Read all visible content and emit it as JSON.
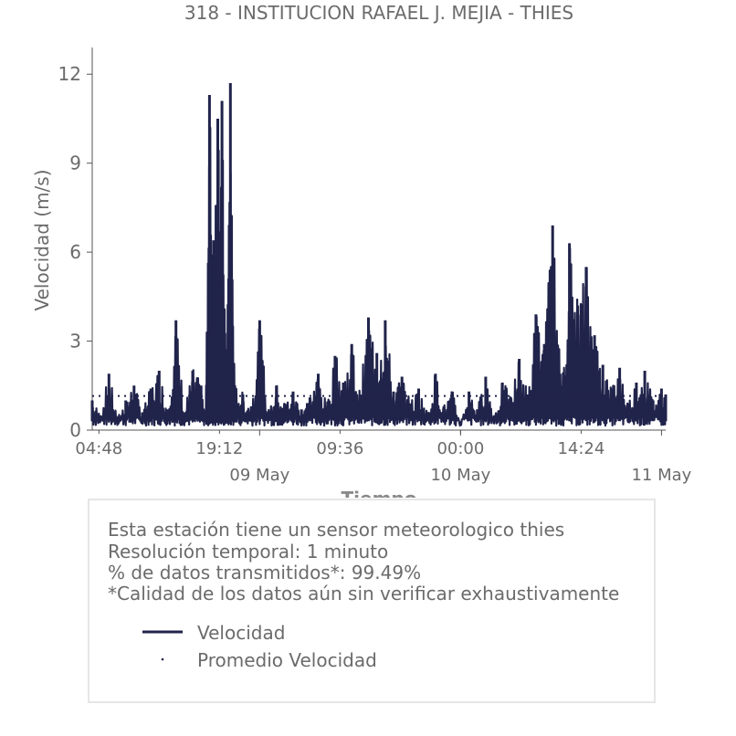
{
  "chart_data": {
    "type": "line",
    "title": "318 - INSTITUCION RAFAEL J. MEJIA - THIES",
    "xlabel": "Tiempo",
    "ylabel": "Velocidad (m/s)",
    "ylim": [
      0,
      12.9
    ],
    "yticks": [
      0,
      3,
      6,
      9,
      12
    ],
    "x_start": "2024-05-08 04:00",
    "x_end": "2024-05-11 00:30",
    "xticks_minor": [
      {
        "x": "2024-05-08 04:48",
        "label": "04:48"
      },
      {
        "x": "2024-05-08 19:12",
        "label": "19:12"
      },
      {
        "x": "2024-05-09 09:36",
        "label": "09:36"
      },
      {
        "x": "2024-05-10 00:00",
        "label": "00:00"
      },
      {
        "x": "2024-05-10 14:24",
        "label": "14:24"
      }
    ],
    "xticks_major": [
      {
        "x": "2024-05-09 00:00",
        "label": "09 May"
      },
      {
        "x": "2024-05-10 00:00",
        "label": "10 May"
      },
      {
        "x": "2024-05-11 00:00",
        "label": "11 May"
      }
    ],
    "series": [
      {
        "name": "Velocidad",
        "color": "#20234a",
        "style": "solid",
        "x": [
          "2024-05-08 04:00",
          "2024-05-08 05:00",
          "2024-05-08 06:00",
          "2024-05-08 07:00",
          "2024-05-08 08:00",
          "2024-05-08 09:00",
          "2024-05-08 10:00",
          "2024-05-08 11:00",
          "2024-05-08 12:00",
          "2024-05-08 13:00",
          "2024-05-08 14:00",
          "2024-05-08 15:00",
          "2024-05-08 16:00",
          "2024-05-08 17:00",
          "2024-05-08 17:30",
          "2024-05-08 18:00",
          "2024-05-08 18:30",
          "2024-05-08 19:00",
          "2024-05-08 19:30",
          "2024-05-08 20:00",
          "2024-05-08 20:30",
          "2024-05-08 21:00",
          "2024-05-08 22:00",
          "2024-05-08 23:00",
          "2024-05-09 00:00",
          "2024-05-09 01:00",
          "2024-05-09 02:00",
          "2024-05-09 03:00",
          "2024-05-09 04:00",
          "2024-05-09 05:00",
          "2024-05-09 06:00",
          "2024-05-09 07:00",
          "2024-05-09 08:00",
          "2024-05-09 09:00",
          "2024-05-09 10:00",
          "2024-05-09 11:00",
          "2024-05-09 12:00",
          "2024-05-09 13:00",
          "2024-05-09 14:00",
          "2024-05-09 15:00",
          "2024-05-09 16:00",
          "2024-05-09 17:00",
          "2024-05-09 18:00",
          "2024-05-09 19:00",
          "2024-05-09 20:00",
          "2024-05-09 21:00",
          "2024-05-09 22:00",
          "2024-05-09 23:00",
          "2024-05-10 00:00",
          "2024-05-10 01:00",
          "2024-05-10 02:00",
          "2024-05-10 03:00",
          "2024-05-10 04:00",
          "2024-05-10 05:00",
          "2024-05-10 06:00",
          "2024-05-10 07:00",
          "2024-05-10 08:00",
          "2024-05-10 09:00",
          "2024-05-10 10:00",
          "2024-05-10 11:00",
          "2024-05-10 12:00",
          "2024-05-10 13:00",
          "2024-05-10 14:00",
          "2024-05-10 15:00",
          "2024-05-10 16:00",
          "2024-05-10 17:00",
          "2024-05-10 18:00",
          "2024-05-10 19:00",
          "2024-05-10 20:00",
          "2024-05-10 21:00",
          "2024-05-10 22:00",
          "2024-05-10 23:00",
          "2024-05-11 00:00",
          "2024-05-11 00:30"
        ],
        "y": [
          1.0,
          0.5,
          1.9,
          0.4,
          1.0,
          1.5,
          0.6,
          1.4,
          2.0,
          0.7,
          3.7,
          0.6,
          2.0,
          1.5,
          0.4,
          11.3,
          6.4,
          10.5,
          11.1,
          1.0,
          11.7,
          1.5,
          1.2,
          0.8,
          3.7,
          0.6,
          1.5,
          0.9,
          1.3,
          0.7,
          1.1,
          1.9,
          0.8,
          2.5,
          1.6,
          2.9,
          1.2,
          3.8,
          2.6,
          3.7,
          1.3,
          1.8,
          0.9,
          1.4,
          0.6,
          1.9,
          0.8,
          1.3,
          0.2,
          1.3,
          0.7,
          1.8,
          0.5,
          1.6,
          1.1,
          2.4,
          1.2,
          3.9,
          2.9,
          6.9,
          1.5,
          6.3,
          4.2,
          5.5,
          3.2,
          2.2,
          1.4,
          2.1,
          0.9,
          1.6,
          2.0,
          1.0,
          1.4,
          1.2
        ]
      },
      {
        "name": "Promedio Velocidad",
        "color": "#20234a",
        "style": "dotted",
        "value": 1.15
      }
    ]
  },
  "info": {
    "line1": "Esta estación tiene un sensor meteorologico thies",
    "line2": "Resolución temporal: 1 minuto",
    "line3": "% de datos transmitidos*: 99.49%",
    "line4": "*Calidad de los datos aún sin verificar exhaustivamente"
  },
  "legend": {
    "item1": "Velocidad",
    "item2": "Promedio Velocidad"
  }
}
